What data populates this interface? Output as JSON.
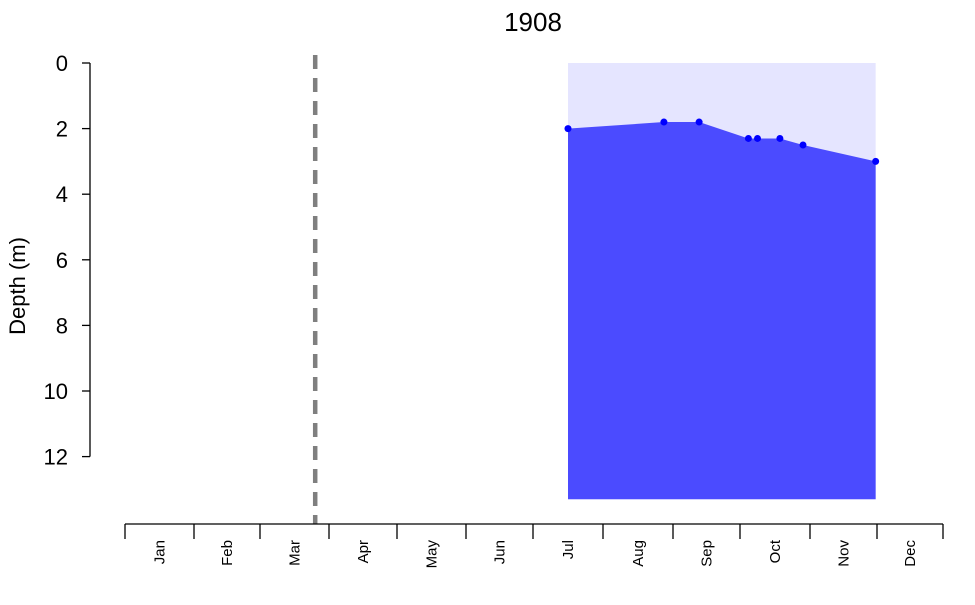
{
  "chart_data": {
    "type": "area",
    "title": "1908",
    "xlabel": "",
    "ylabel": "Depth (m)",
    "x_axis": "month of year",
    "y_axis": "depth, inverted (0 at top)",
    "ylim": [
      0,
      12
    ],
    "yticks": [
      0,
      2,
      4,
      6,
      8,
      10,
      12
    ],
    "months": [
      "Jan",
      "Feb",
      "Mar",
      "Apr",
      "May",
      "Jun",
      "Jul",
      "Aug",
      "Sep",
      "Oct",
      "Nov",
      "Dec"
    ],
    "reference_line": {
      "date": "Mar 25",
      "month_fraction": 2.8,
      "style": "dashed",
      "color": "#7f7f7f"
    },
    "measurement_window": {
      "start": "Jul 15",
      "end": "Nov 30",
      "start_month": 6.5,
      "end_month": 10.98,
      "bottom_depth": 13.3
    },
    "series": [
      {
        "points": [
          {
            "date": "Jul 15",
            "month": 6.5,
            "depth": 2.0
          },
          {
            "date": "Aug 27",
            "month": 7.87,
            "depth": 1.8
          },
          {
            "date": "Sep 12",
            "month": 8.39,
            "depth": 1.8
          },
          {
            "date": "Oct 4",
            "month": 9.12,
            "depth": 2.3
          },
          {
            "date": "Oct 8",
            "month": 9.25,
            "depth": 2.3
          },
          {
            "date": "Oct 18",
            "month": 9.57,
            "depth": 2.3
          },
          {
            "date": "Oct 28",
            "month": 9.9,
            "depth": 2.5
          },
          {
            "date": "Nov 30",
            "month": 10.98,
            "depth": 3.0
          }
        ]
      }
    ],
    "colors": {
      "fill_dark": "#4b4bff",
      "fill_light": "#e5e5ff",
      "points": "#0000ff",
      "reference": "#7f7f7f",
      "axis": "#000000"
    },
    "grid": false,
    "legend": "none"
  }
}
